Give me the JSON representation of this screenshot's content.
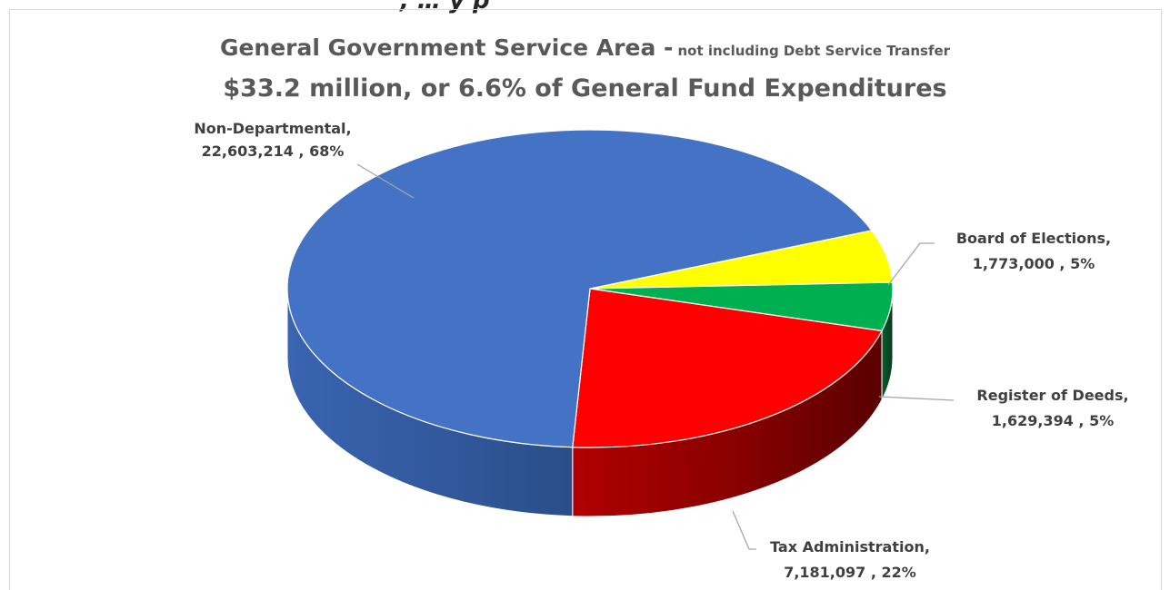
{
  "header_fragment": "  , …        y          p",
  "chart_data": {
    "type": "pie",
    "title": "General Government Service Area -",
    "title_suffix": "not including Debt Service Transfer",
    "subtitle": "$33.2 million, or 6.6% of General Fund Expenditures",
    "three_d": true,
    "legend": "none",
    "slices": [
      {
        "label": "Non-Departmental,",
        "value": 22603214,
        "value_text": "22,603,214",
        "percent": "68%",
        "color": "#4472c4",
        "side_color": "#2f5597"
      },
      {
        "label": "Board of Elections,",
        "value": 1773000,
        "value_text": "1,773,000",
        "percent": "5%",
        "color": "#ffff00",
        "side_color": "#b3b300"
      },
      {
        "label": "Register of Deeds,",
        "value": 1629394,
        "value_text": "1,629,394",
        "percent": "5%",
        "color": "#00b050",
        "side_color": "#0b5d2e"
      },
      {
        "label": "Tax Administration,",
        "value": 7181097,
        "value_text": "7,181,097",
        "percent": "22%",
        "color": "#ff0000",
        "side_color": "#8b0000"
      }
    ]
  }
}
